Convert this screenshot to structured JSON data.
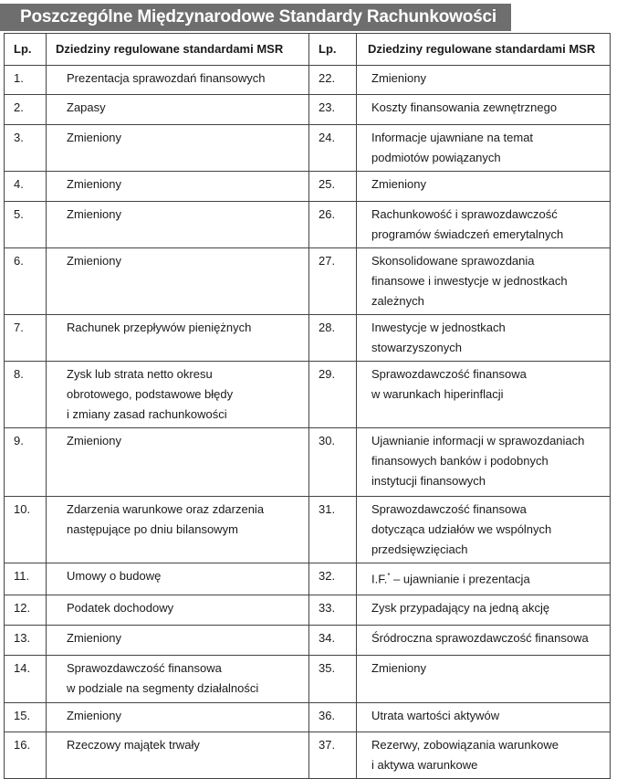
{
  "title": "Poszczególne Międzynarodowe Standardy Rachunkowości",
  "headers": {
    "lp": "Lp.",
    "area": "Dziedziny regulowane standardami MSR"
  },
  "rows": [
    {
      "l_no": "1.",
      "l": "Prezentacja sprawozdań finansowych",
      "r_no": "22.",
      "r": "Zmieniony",
      "h": 32
    },
    {
      "l_no": "2.",
      "l": "Zapasy",
      "r_no": "23.",
      "r": "Koszty finansowania zewnętrznego",
      "h": 33
    },
    {
      "l_no": "3.",
      "l": "Zmieniony",
      "r_no": "24.",
      "r": "Informacje ujawniane na temat\npodmiotów powiązanych",
      "h": 50
    },
    {
      "l_no": "4.",
      "l": "Zmieniony",
      "r_no": "25.",
      "r": "Zmieniony",
      "h": 33
    },
    {
      "l_no": "5.",
      "l": "Zmieniony",
      "r_no": "26.",
      "r": "Rachunkowość i sprawozdawczość\nprogramów świadczeń emerytalnych",
      "h": 47
    },
    {
      "l_no": "6.",
      "l": "Zmieniony",
      "r_no": "27.",
      "r": "Skonsolidowane sprawozdania\nfinansowe i inwestycje w jednostkach\nzależnych",
      "h": 73
    },
    {
      "l_no": "7.",
      "l": "Rachunek przepływów pieniężnych",
      "r_no": "28.",
      "r": "Inwestycje w jednostkach\nstowarzyszonych",
      "h": 50
    },
    {
      "l_no": "8.",
      "l": "Zysk lub strata netto okresu\nobrotowego, podstawowe błędy\ni zmiany zasad rachunkowości",
      "r_no": "29.",
      "r": "Sprawozdawczość finansowa\nw warunkach hiperinflacji",
      "h": 72
    },
    {
      "l_no": "9.",
      "l": "Zmieniony",
      "r_no": "30.",
      "r": "Ujawnianie informacji w sprawozdaniach\nfinansowych banków i podobnych\ninstytucji finansowych",
      "h": 75
    },
    {
      "l_no": "10.",
      "l": "Zdarzenia warunkowe oraz zdarzenia\nnastępujące po dniu bilansowym",
      "r_no": "31.",
      "r": "Sprawozdawczość finansowa\ndotycząca udziałów we wspólnych\nprzedsięwzięciach",
      "h": 70
    },
    {
      "l_no": "11.",
      "l": "Umowy o budowę",
      "r_no": "32.",
      "r": "I.F.",
      "r_sup": "*",
      "r_after": " – ujawnianie i prezentacja",
      "h": 35
    },
    {
      "l_no": "12.",
      "l": "Podatek dochodowy",
      "r_no": "33.",
      "r": "Zysk przypadający na jedną akcję",
      "h": 33
    },
    {
      "l_no": "13.",
      "l": "Zmieniony",
      "r_no": "34.",
      "r": "Śródroczna sprawozdawczość finansowa",
      "h": 33
    },
    {
      "l_no": "14.",
      "l": "Sprawozdawczość finansowa\nw podziale na segmenty działalności",
      "r_no": "35.",
      "r": "Zmieniony",
      "h": 52
    },
    {
      "l_no": "15.",
      "l": "Zmieniony",
      "r_no": "36.",
      "r": "Utrata wartości aktywów",
      "h": 32
    },
    {
      "l_no": "16.",
      "l": "Rzeczowy majątek trwały",
      "r_no": "37.",
      "r": "Rezerwy, zobowiązania warunkowe\ni aktywa warunkowe",
      "h": 50
    }
  ]
}
